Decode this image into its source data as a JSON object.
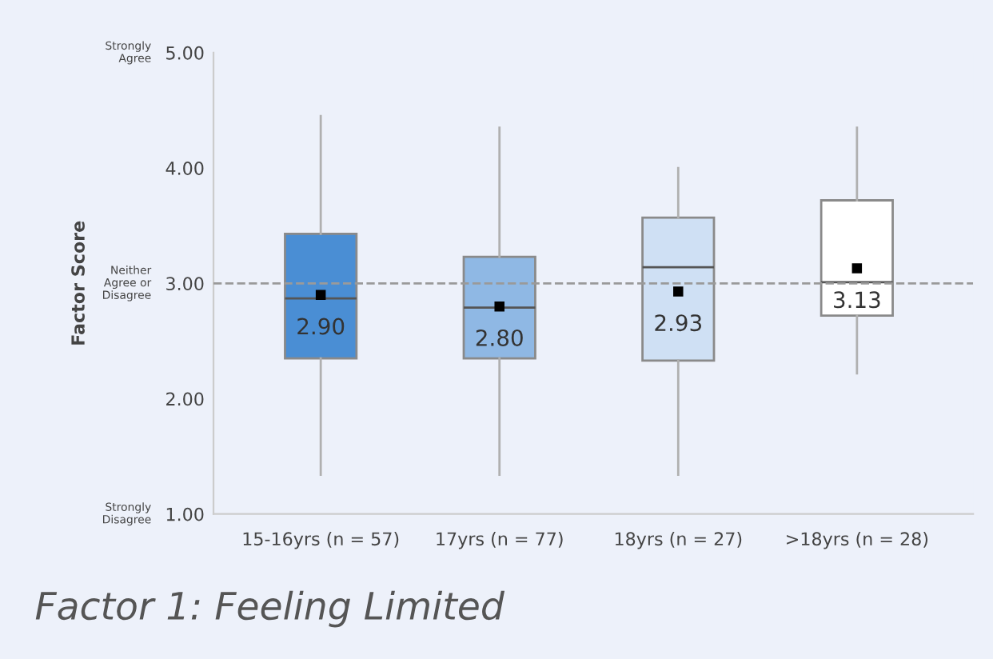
{
  "chart_data": {
    "type": "box",
    "title": "Factor 1: Feeling Limited",
    "ylabel": "Factor Score",
    "categories": [
      "15-16yrs (n = 57)",
      "17yrs (n = 77)",
      "18yrs (n = 27)",
      ">18yrs (n = 28)"
    ],
    "boxes": [
      {
        "low": 1.34,
        "q1": 2.35,
        "median": 2.87,
        "q3": 3.43,
        "high": 4.45,
        "mean": 2.9
      },
      {
        "low": 1.34,
        "q1": 2.35,
        "median": 2.79,
        "q3": 3.23,
        "high": 4.35,
        "mean": 2.8
      },
      {
        "low": 1.34,
        "q1": 2.33,
        "median": 3.14,
        "q3": 3.57,
        "high": 4.0,
        "mean": 2.93
      },
      {
        "low": 2.22,
        "q1": 2.72,
        "median": 3.01,
        "q3": 3.72,
        "high": 4.35,
        "mean": 3.13
      }
    ],
    "colors": [
      "#4a8ed4",
      "#8fb8e4",
      "#cfe0f4",
      "#ffffff"
    ],
    "ylim": [
      1,
      5
    ],
    "yticks": [
      {
        "value": 1,
        "label": "1.00"
      },
      {
        "value": 2,
        "label": "2.00"
      },
      {
        "value": 3,
        "label": "3.00"
      },
      {
        "value": 4,
        "label": "4.00"
      },
      {
        "value": 5,
        "label": "5.00"
      }
    ],
    "ref_lines": [
      {
        "axis": "y",
        "value": 3,
        "label": null,
        "color": "#9a9a9a",
        "line_style": "dashed"
      }
    ],
    "value_labels": [
      "2.90",
      "2.80",
      "2.93",
      "3.13"
    ],
    "annotations": [
      "Strongly\nAgree",
      "Neither\nAgree or\nDisagree",
      "Strongly\nDisagree"
    ],
    "grid": false,
    "legend": false
  }
}
